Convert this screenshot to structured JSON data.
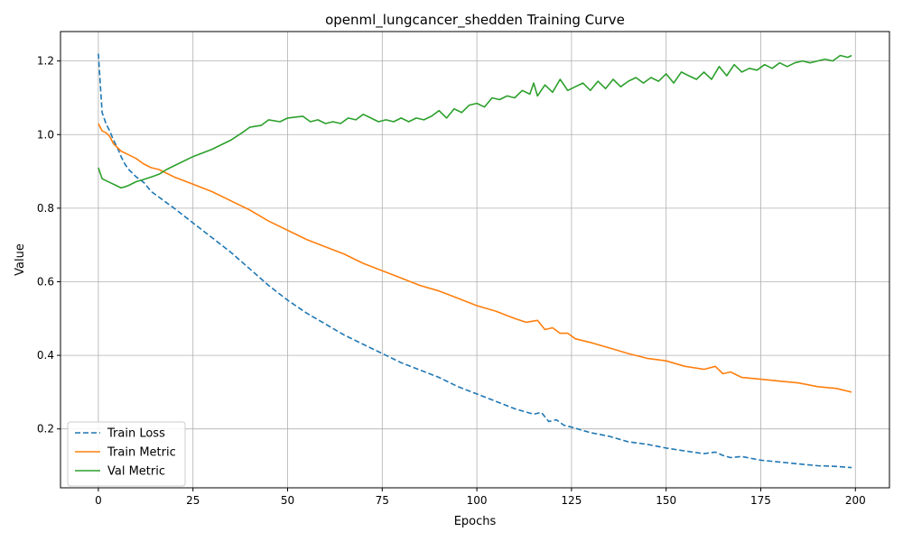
{
  "chart_data": {
    "type": "line",
    "title": "openml_lungcancer_shedden Training Curve",
    "xlabel": "Epochs",
    "ylabel": "Value",
    "xlim": [
      -10,
      209
    ],
    "ylim": [
      0.04,
      1.28
    ],
    "xticks": [
      0,
      25,
      50,
      75,
      100,
      125,
      150,
      175,
      200
    ],
    "yticks": [
      0.2,
      0.4,
      0.6,
      0.8,
      1.0,
      1.2
    ],
    "xtick_labels": [
      "0",
      "25",
      "50",
      "75",
      "100",
      "125",
      "150",
      "175",
      "200"
    ],
    "ytick_labels": [
      "0.2",
      "0.4",
      "0.6",
      "0.8",
      "1.0",
      "1.2"
    ],
    "grid": true,
    "legend_position": "lower-left",
    "series": [
      {
        "name": "Train Loss",
        "color": "#1f77b4",
        "dash": "dashed",
        "x": [
          0,
          1,
          2,
          3,
          4,
          5,
          6,
          7,
          8,
          10,
          12,
          14,
          16,
          18,
          20,
          25,
          30,
          35,
          40,
          45,
          50,
          55,
          60,
          65,
          70,
          75,
          80,
          85,
          90,
          95,
          100,
          105,
          110,
          115,
          117,
          119,
          121,
          123,
          125,
          130,
          135,
          140,
          145,
          150,
          155,
          160,
          163,
          165,
          167,
          170,
          175,
          180,
          185,
          190,
          195,
          199
        ],
        "values": [
          1.22,
          1.06,
          1.03,
          1.01,
          0.985,
          0.965,
          0.94,
          0.92,
          0.905,
          0.885,
          0.87,
          0.845,
          0.83,
          0.815,
          0.8,
          0.76,
          0.72,
          0.68,
          0.635,
          0.59,
          0.55,
          0.515,
          0.485,
          0.455,
          0.43,
          0.405,
          0.38,
          0.36,
          0.34,
          0.315,
          0.295,
          0.275,
          0.255,
          0.24,
          0.245,
          0.22,
          0.225,
          0.21,
          0.205,
          0.19,
          0.18,
          0.165,
          0.158,
          0.148,
          0.14,
          0.133,
          0.137,
          0.128,
          0.122,
          0.125,
          0.115,
          0.11,
          0.105,
          0.1,
          0.098,
          0.095
        ]
      },
      {
        "name": "Train Metric",
        "color": "#ff7f0e",
        "dash": "solid",
        "x": [
          0,
          1,
          2,
          3,
          4,
          5,
          6,
          8,
          10,
          12,
          14,
          16,
          18,
          20,
          25,
          30,
          35,
          40,
          45,
          50,
          55,
          60,
          65,
          70,
          75,
          80,
          85,
          90,
          95,
          100,
          105,
          110,
          113,
          116,
          118,
          120,
          122,
          124,
          126,
          130,
          135,
          140,
          145,
          150,
          155,
          160,
          163,
          165,
          167,
          170,
          175,
          180,
          185,
          190,
          195,
          199
        ],
        "values": [
          1.03,
          1.01,
          1.005,
          0.995,
          0.975,
          0.965,
          0.955,
          0.945,
          0.935,
          0.92,
          0.91,
          0.905,
          0.895,
          0.885,
          0.865,
          0.845,
          0.82,
          0.795,
          0.765,
          0.74,
          0.715,
          0.695,
          0.675,
          0.65,
          0.63,
          0.61,
          0.59,
          0.575,
          0.555,
          0.535,
          0.52,
          0.5,
          0.49,
          0.495,
          0.47,
          0.475,
          0.46,
          0.46,
          0.445,
          0.435,
          0.42,
          0.405,
          0.392,
          0.385,
          0.37,
          0.362,
          0.37,
          0.35,
          0.355,
          0.34,
          0.335,
          0.33,
          0.325,
          0.315,
          0.31,
          0.3
        ]
      },
      {
        "name": "Val Metric",
        "color": "#2ca02c",
        "dash": "solid",
        "x": [
          0,
          1,
          2,
          3,
          4,
          5,
          6,
          7,
          8,
          10,
          12,
          14,
          16,
          18,
          20,
          25,
          30,
          35,
          38,
          40,
          43,
          45,
          48,
          50,
          54,
          56,
          58,
          60,
          62,
          64,
          66,
          68,
          70,
          72,
          74,
          76,
          78,
          80,
          82,
          84,
          86,
          88,
          90,
          92,
          94,
          96,
          98,
          100,
          102,
          104,
          106,
          108,
          110,
          112,
          114,
          115,
          116,
          118,
          120,
          122,
          124,
          126,
          128,
          130,
          132,
          134,
          136,
          138,
          140,
          142,
          144,
          146,
          148,
          150,
          152,
          154,
          156,
          158,
          160,
          162,
          164,
          166,
          168,
          170,
          172,
          174,
          176,
          178,
          180,
          182,
          184,
          186,
          188,
          190,
          192,
          194,
          196,
          198,
          199
        ],
        "values": [
          0.91,
          0.88,
          0.875,
          0.87,
          0.865,
          0.86,
          0.855,
          0.858,
          0.862,
          0.872,
          0.878,
          0.885,
          0.892,
          0.905,
          0.915,
          0.94,
          0.96,
          0.985,
          1.005,
          1.02,
          1.025,
          1.04,
          1.035,
          1.045,
          1.05,
          1.035,
          1.04,
          1.03,
          1.035,
          1.03,
          1.045,
          1.04,
          1.055,
          1.045,
          1.035,
          1.04,
          1.035,
          1.045,
          1.035,
          1.045,
          1.04,
          1.05,
          1.065,
          1.045,
          1.07,
          1.06,
          1.08,
          1.085,
          1.075,
          1.1,
          1.095,
          1.105,
          1.1,
          1.12,
          1.11,
          1.14,
          1.105,
          1.135,
          1.115,
          1.15,
          1.12,
          1.13,
          1.14,
          1.12,
          1.145,
          1.125,
          1.15,
          1.13,
          1.145,
          1.155,
          1.14,
          1.155,
          1.145,
          1.165,
          1.14,
          1.17,
          1.16,
          1.15,
          1.17,
          1.15,
          1.185,
          1.16,
          1.19,
          1.17,
          1.18,
          1.175,
          1.19,
          1.18,
          1.195,
          1.185,
          1.195,
          1.2,
          1.195,
          1.2,
          1.205,
          1.2,
          1.215,
          1.21,
          1.215
        ]
      }
    ]
  }
}
